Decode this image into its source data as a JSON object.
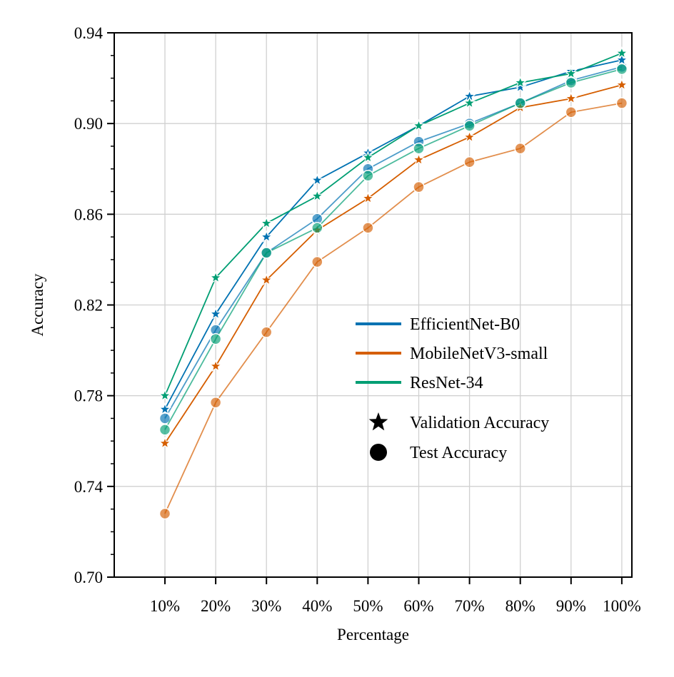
{
  "chart_data": {
    "type": "line",
    "title": "",
    "xlabel": "Percentage",
    "ylabel": "Accuracy",
    "categories": [
      "10%",
      "20%",
      "30%",
      "40%",
      "50%",
      "60%",
      "70%",
      "80%",
      "90%",
      "100%"
    ],
    "ylim": [
      0.7,
      0.94
    ],
    "yticks": [
      "0.70",
      "0.74",
      "0.78",
      "0.82",
      "0.86",
      "0.90",
      "0.94"
    ],
    "ytick_values": [
      0.7,
      0.74,
      0.78,
      0.82,
      0.86,
      0.9,
      0.94
    ],
    "y_minor_step": 0.01,
    "grid": true,
    "legend_position": "center-right",
    "series": [
      {
        "name": "EfficientNet-B0",
        "color": "#0072b2",
        "validation": [
          0.774,
          0.816,
          0.85,
          0.875,
          0.887,
          0.899,
          0.912,
          0.916,
          0.923,
          0.928
        ],
        "test": [
          0.77,
          0.809,
          0.843,
          0.858,
          0.88,
          0.892,
          0.9,
          0.909,
          0.919,
          0.925
        ]
      },
      {
        "name": "MobileNetV3-small",
        "color": "#d55e00",
        "validation": [
          0.759,
          0.793,
          0.831,
          0.853,
          0.867,
          0.884,
          0.894,
          0.907,
          0.911,
          0.917
        ],
        "test": [
          0.728,
          0.777,
          0.808,
          0.839,
          0.854,
          0.872,
          0.883,
          0.889,
          0.905,
          0.909
        ]
      },
      {
        "name": "ResNet-34",
        "color": "#009e73",
        "validation": [
          0.78,
          0.832,
          0.856,
          0.868,
          0.885,
          0.899,
          0.909,
          0.918,
          0.922,
          0.931
        ],
        "test": [
          0.765,
          0.805,
          0.843,
          0.854,
          0.877,
          0.889,
          0.899,
          0.909,
          0.918,
          0.924
        ]
      }
    ],
    "marker_legend": [
      {
        "label": "Validation Accuracy",
        "marker": "star"
      },
      {
        "label": "Test Accuracy",
        "marker": "circle"
      }
    ]
  }
}
